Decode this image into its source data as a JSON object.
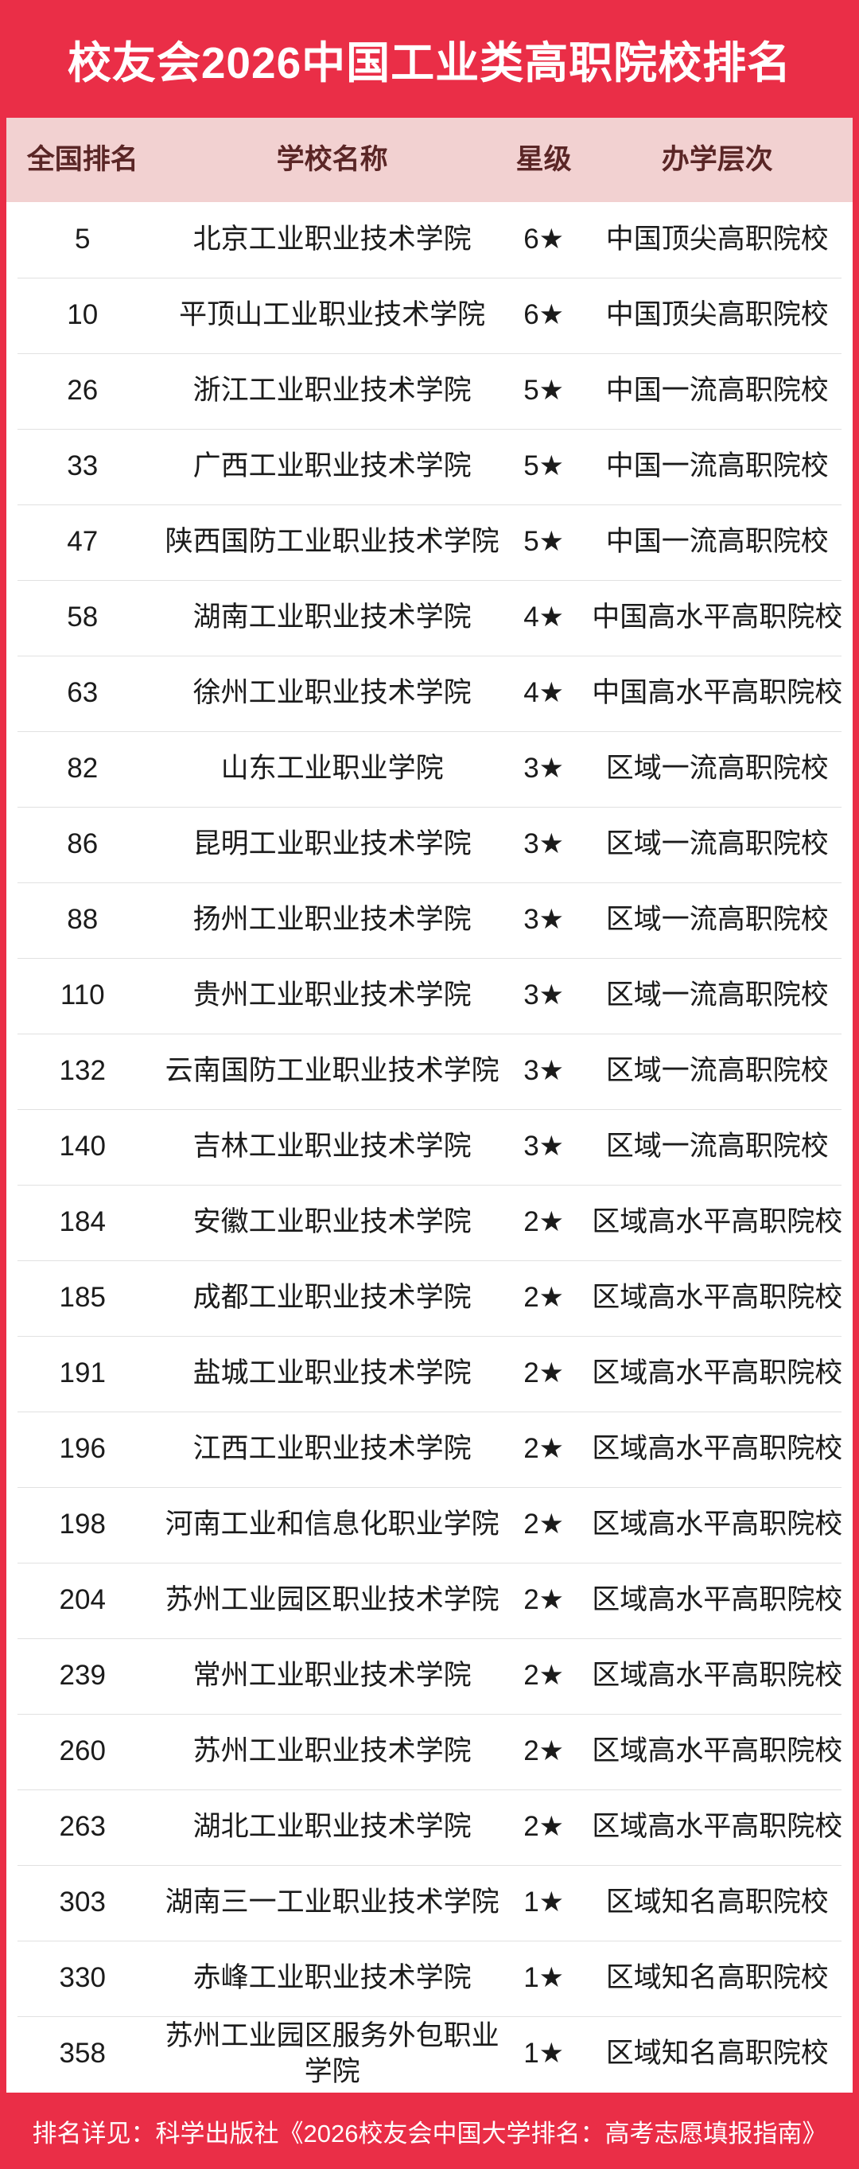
{
  "chart_data": {
    "type": "table",
    "title": "校友会2026中国工业类高职院校排名",
    "columns": [
      "全国排名",
      "学校名称",
      "星级",
      "办学层次"
    ],
    "rows": [
      {
        "rank": "5",
        "school": "北京工业职业技术学院",
        "stars": "6★",
        "level": "中国顶尖高职院校"
      },
      {
        "rank": "10",
        "school": "平顶山工业职业技术学院",
        "stars": "6★",
        "level": "中国顶尖高职院校"
      },
      {
        "rank": "26",
        "school": "浙江工业职业技术学院",
        "stars": "5★",
        "level": "中国一流高职院校"
      },
      {
        "rank": "33",
        "school": "广西工业职业技术学院",
        "stars": "5★",
        "level": "中国一流高职院校"
      },
      {
        "rank": "47",
        "school": "陕西国防工业职业技术学院",
        "stars": "5★",
        "level": "中国一流高职院校"
      },
      {
        "rank": "58",
        "school": "湖南工业职业技术学院",
        "stars": "4★",
        "level": "中国高水平高职院校"
      },
      {
        "rank": "63",
        "school": "徐州工业职业技术学院",
        "stars": "4★",
        "level": "中国高水平高职院校"
      },
      {
        "rank": "82",
        "school": "山东工业职业学院",
        "stars": "3★",
        "level": "区域一流高职院校"
      },
      {
        "rank": "86",
        "school": "昆明工业职业技术学院",
        "stars": "3★",
        "level": "区域一流高职院校"
      },
      {
        "rank": "88",
        "school": "扬州工业职业技术学院",
        "stars": "3★",
        "level": "区域一流高职院校"
      },
      {
        "rank": "110",
        "school": "贵州工业职业技术学院",
        "stars": "3★",
        "level": "区域一流高职院校"
      },
      {
        "rank": "132",
        "school": "云南国防工业职业技术学院",
        "stars": "3★",
        "level": "区域一流高职院校"
      },
      {
        "rank": "140",
        "school": "吉林工业职业技术学院",
        "stars": "3★",
        "level": "区域一流高职院校"
      },
      {
        "rank": "184",
        "school": "安徽工业职业技术学院",
        "stars": "2★",
        "level": "区域高水平高职院校"
      },
      {
        "rank": "185",
        "school": "成都工业职业技术学院",
        "stars": "2★",
        "level": "区域高水平高职院校"
      },
      {
        "rank": "191",
        "school": "盐城工业职业技术学院",
        "stars": "2★",
        "level": "区域高水平高职院校"
      },
      {
        "rank": "196",
        "school": "江西工业职业技术学院",
        "stars": "2★",
        "level": "区域高水平高职院校"
      },
      {
        "rank": "198",
        "school": "河南工业和信息化职业学院",
        "stars": "2★",
        "level": "区域高水平高职院校"
      },
      {
        "rank": "204",
        "school": "苏州工业园区职业技术学院",
        "stars": "2★",
        "level": "区域高水平高职院校"
      },
      {
        "rank": "239",
        "school": "常州工业职业技术学院",
        "stars": "2★",
        "level": "区域高水平高职院校"
      },
      {
        "rank": "260",
        "school": "苏州工业职业技术学院",
        "stars": "2★",
        "level": "区域高水平高职院校"
      },
      {
        "rank": "263",
        "school": "湖北工业职业技术学院",
        "stars": "2★",
        "level": "区域高水平高职院校"
      },
      {
        "rank": "303",
        "school": "湖南三一工业职业技术学院",
        "stars": "1★",
        "level": "区域知名高职院校"
      },
      {
        "rank": "330",
        "school": "赤峰工业职业技术学院",
        "stars": "1★",
        "level": "区域知名高职院校"
      },
      {
        "rank": "358",
        "school": "苏州工业园区服务外包职业学院",
        "stars": "1★",
        "level": "区域知名高职院校"
      }
    ]
  },
  "footer": {
    "note": "排名详见：科学出版社《2026校友会中国大学排名：高考志愿填报指南》"
  },
  "colors": {
    "accent_red": "#ea2e47",
    "header_pink": "#f2d1d1",
    "header_text": "#5a2626",
    "body_text": "#1b1b1b",
    "separator": "#e1e1e1",
    "title_text": "#ffffff"
  }
}
